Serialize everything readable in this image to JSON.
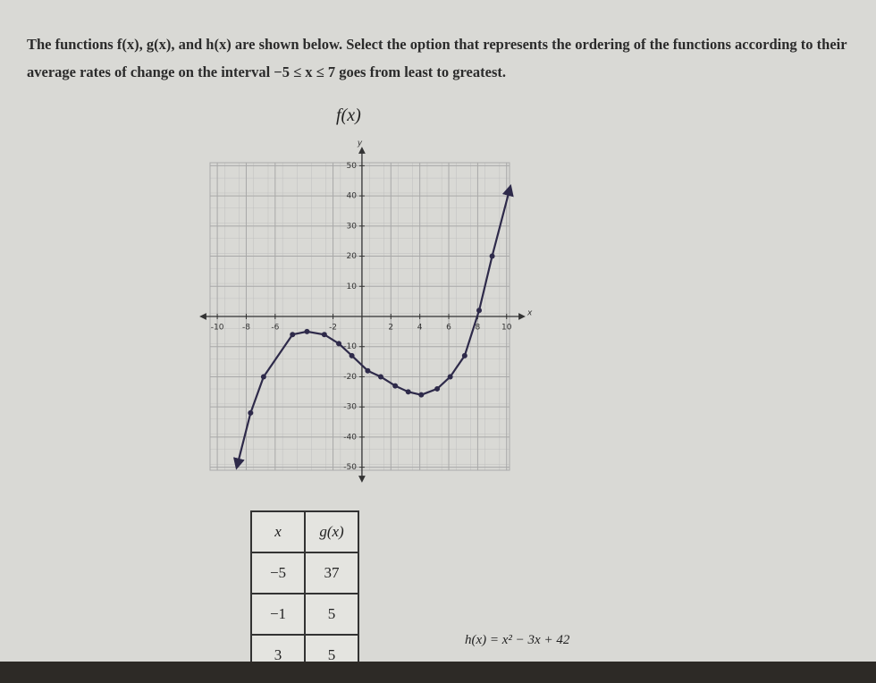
{
  "question": "The functions f(x), g(x), and h(x) are shown below. Select the option that represents the ordering of the functions according to their average rates of change on the interval −5 ≤ x ≤ 7 goes from least to greatest.",
  "chart_data": {
    "type": "line",
    "title": "f(x)",
    "x_label": "x",
    "y_label": "y",
    "x": [
      -8.6,
      -7.7,
      -6.8,
      -4.8,
      -3.8,
      -2.6,
      -1.6,
      -0.7,
      0.4,
      1.3,
      2.3,
      3.2,
      4.1,
      5.2,
      6.1,
      7.1,
      8.1,
      9,
      10.2
    ],
    "values": [
      -49,
      -32,
      -20,
      -6,
      -5,
      -6,
      -9,
      -13,
      -18,
      -20,
      -23,
      -25,
      -26,
      -24,
      -20,
      -13,
      2,
      20,
      42
    ],
    "color": "#2e2a4a",
    "xlim": [
      -10.5,
      10.2
    ],
    "ylim": [
      -51,
      51
    ],
    "xticks": [
      -10,
      -8,
      -6,
      -2,
      2,
      4,
      6,
      8,
      10
    ],
    "yticks": [
      50,
      40,
      30,
      20,
      10,
      -10,
      -20,
      -30,
      -40,
      -50
    ],
    "grid": true
  },
  "table": {
    "header": [
      "x",
      "g(x)"
    ],
    "rows": [
      [
        "−5",
        "37"
      ],
      [
        "−1",
        "5"
      ],
      [
        "3",
        "5"
      ]
    ]
  },
  "h_formula": "h(x) = x² − 3x + 42"
}
